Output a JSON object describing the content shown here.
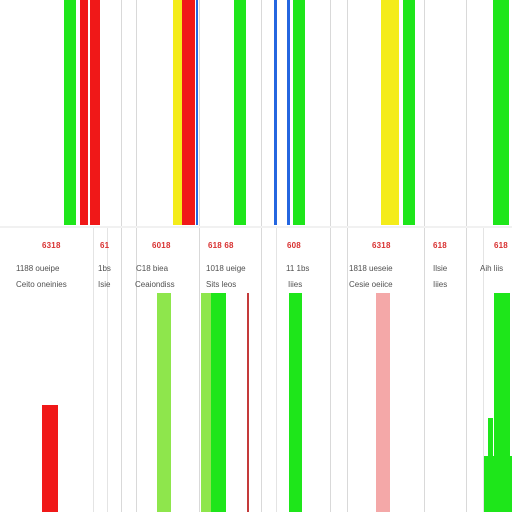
{
  "colors": {
    "red": "#f01818",
    "yellow": "#f4ec1a",
    "green": "#1ee61a",
    "blue": "#2466e0",
    "light_green": "#8ee64c",
    "pink": "#f4a8a8",
    "dark_red": "#c43a3a",
    "divider": "#d9d9d9",
    "label_red": "#d83030",
    "label_gray": "#505050"
  },
  "panels": [
    {
      "line1": "6318",
      "line2": "1188 oueipe",
      "line3": "Ceito oneinies"
    },
    {
      "line1": "61",
      "line2": "1bs",
      "line3": "Isie"
    },
    {
      "line1": "6018",
      "line2": "C18 biea",
      "line3": "Ceaiondiss"
    },
    {
      "line1": "618 68",
      "line2": "1018 ueige",
      "line3": "Sits   leos"
    },
    {
      "line1": "608",
      "line2": "11 1bs",
      "line3": "Iiies"
    },
    {
      "line1": "6318",
      "line2": "1818 ueseie",
      "line3": "Cesie oeiice"
    },
    {
      "line1": "618",
      "line2": "Ilsie",
      "line3": "Iiies"
    },
    {
      "line1": "618",
      "line2": "Aih liis",
      "line3": ""
    }
  ]
}
